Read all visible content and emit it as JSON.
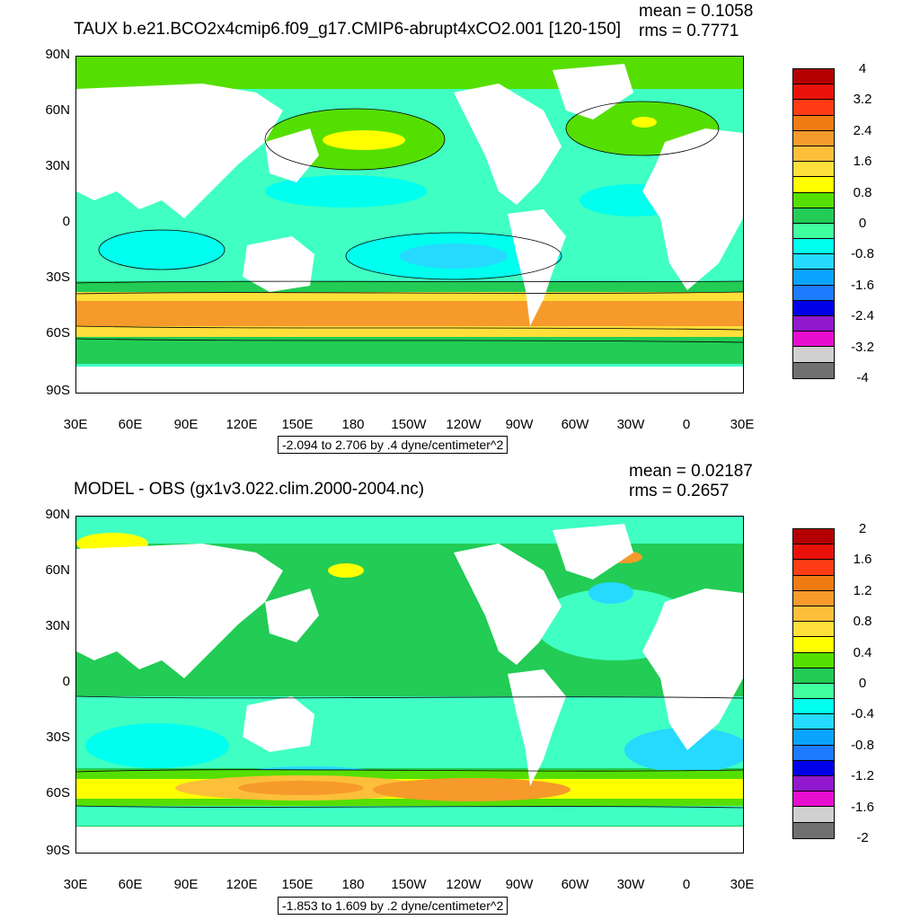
{
  "panels": [
    {
      "title": "TAUX b.e21.BCO2x4cmip6.f09_g17.CMIP6-abrupt4xCO2.001 [120-150]",
      "mean": "mean = 0.1058",
      "rms": "rms = 0.7771",
      "range_label": "-2.094 to 2.706 by .4 dyne/centimeter^2",
      "colorbar": {
        "labels": [
          "4",
          "3.2",
          "2.4",
          "1.6",
          "0.8",
          "0",
          "-0.8",
          "-1.6",
          "-2.4",
          "-3.2",
          "-4"
        ],
        "colors": [
          "#b40000",
          "#e8120b",
          "#ff3c14",
          "#ef7b12",
          "#f69a2c",
          "#fdbf3a",
          "#ffdf3a",
          "#ffff00",
          "#55df00",
          "#22cc55",
          "#40ff9e",
          "#00ffee",
          "#25d9ff",
          "#0aa4ff",
          "#1e7bff",
          "#0000e8",
          "#9118cd",
          "#e80ecf",
          "#d0d0d0",
          "#707070"
        ]
      }
    },
    {
      "title": "MODEL - OBS (gx1v3.022.clim.2000-2004.nc)",
      "mean": "mean = 0.02187",
      "rms": "rms = 0.2657",
      "range_label": "-1.853 to 1.609 by .2 dyne/centimeter^2",
      "colorbar": {
        "labels": [
          "2",
          "1.6",
          "1.2",
          "0.8",
          "0.4",
          "0",
          "-0.4",
          "-0.8",
          "-1.2",
          "-1.6",
          "-2"
        ],
        "colors": [
          "#b40000",
          "#e8120b",
          "#ff3c14",
          "#ef7b12",
          "#f69a2c",
          "#fdbf3a",
          "#ffdf3a",
          "#ffff00",
          "#55df00",
          "#22cc55",
          "#40ff9e",
          "#00ffee",
          "#25d9ff",
          "#0aa4ff",
          "#1e7bff",
          "#0000e8",
          "#9118cd",
          "#e80ecf",
          "#d0d0d0",
          "#707070"
        ]
      }
    }
  ],
  "axes": {
    "lat_labels": [
      "90N",
      "60N",
      "30N",
      "0",
      "30S",
      "60S",
      "90S"
    ],
    "lon_labels": [
      "30E",
      "60E",
      "90E",
      "120E",
      "150E",
      "180",
      "150W",
      "120W",
      "90W",
      "60W",
      "30W",
      "0",
      "30E"
    ]
  }
}
